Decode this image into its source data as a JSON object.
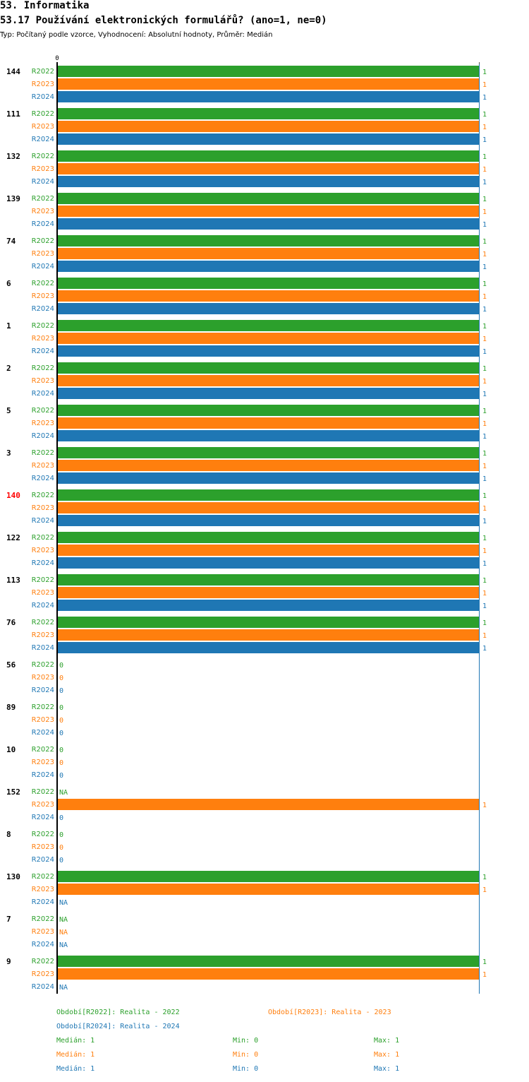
{
  "header": {
    "section": "53. Informatika",
    "question": "53.17 Používání elektronických formulářů? (ano=1, ne=0)",
    "meta": "Typ: Počítaný podle vzorce, Vyhodnocení: Absolutní hodnoty, Průměr: Medián"
  },
  "colors": {
    "R2022": "#2ca02c",
    "R2023": "#ff7f0e",
    "R2024": "#1f77b4",
    "highlight": "#ff0000",
    "axis": "#000000"
  },
  "chart_data": {
    "type": "bar",
    "orientation": "horizontal",
    "axis_min": 0,
    "axis_max": 1,
    "axis_tick_label": "0",
    "series_names": [
      "R2022",
      "R2023",
      "R2024"
    ],
    "groups": [
      {
        "label": "144",
        "highlight": false,
        "values": [
          1,
          1,
          1
        ]
      },
      {
        "label": "111",
        "highlight": false,
        "values": [
          1,
          1,
          1
        ]
      },
      {
        "label": "132",
        "highlight": false,
        "values": [
          1,
          1,
          1
        ]
      },
      {
        "label": "139",
        "highlight": false,
        "values": [
          1,
          1,
          1
        ]
      },
      {
        "label": "74",
        "highlight": false,
        "values": [
          1,
          1,
          1
        ]
      },
      {
        "label": "6",
        "highlight": false,
        "values": [
          1,
          1,
          1
        ]
      },
      {
        "label": "1",
        "highlight": false,
        "values": [
          1,
          1,
          1
        ]
      },
      {
        "label": "2",
        "highlight": false,
        "values": [
          1,
          1,
          1
        ]
      },
      {
        "label": "5",
        "highlight": false,
        "values": [
          1,
          1,
          1
        ]
      },
      {
        "label": "3",
        "highlight": false,
        "values": [
          1,
          1,
          1
        ]
      },
      {
        "label": "140",
        "highlight": true,
        "values": [
          1,
          1,
          1
        ]
      },
      {
        "label": "122",
        "highlight": false,
        "values": [
          1,
          1,
          1
        ]
      },
      {
        "label": "113",
        "highlight": false,
        "values": [
          1,
          1,
          1
        ]
      },
      {
        "label": "76",
        "highlight": false,
        "values": [
          1,
          1,
          1
        ]
      },
      {
        "label": "56",
        "highlight": false,
        "values": [
          0,
          0,
          0
        ]
      },
      {
        "label": "89",
        "highlight": false,
        "values": [
          0,
          0,
          0
        ]
      },
      {
        "label": "10",
        "highlight": false,
        "values": [
          0,
          0,
          0
        ]
      },
      {
        "label": "152",
        "highlight": false,
        "values": [
          "NA",
          1,
          0
        ]
      },
      {
        "label": "8",
        "highlight": false,
        "values": [
          0,
          0,
          0
        ]
      },
      {
        "label": "130",
        "highlight": false,
        "values": [
          1,
          1,
          "NA"
        ]
      },
      {
        "label": "7",
        "highlight": false,
        "values": [
          "NA",
          "NA",
          "NA"
        ]
      },
      {
        "label": "9",
        "highlight": false,
        "values": [
          1,
          1,
          "NA"
        ]
      }
    ]
  },
  "legend": {
    "periods": [
      {
        "series": "R2022",
        "text": "Období[R2022]: Realita - 2022"
      },
      {
        "series": "R2023",
        "text": "Období[R2023]: Realita - 2023"
      },
      {
        "series": "R2024",
        "text": "Období[R2024]: Realita - 2024"
      }
    ],
    "stats": [
      {
        "series": "R2022",
        "median": "Medián: 1",
        "min": "Min: 0",
        "max": "Max: 1"
      },
      {
        "series": "R2023",
        "median": "Medián: 1",
        "min": "Min: 0",
        "max": "Max: 1"
      },
      {
        "series": "R2024",
        "median": "Medián: 1",
        "min": "Min: 0",
        "max": "Max: 1"
      }
    ]
  }
}
